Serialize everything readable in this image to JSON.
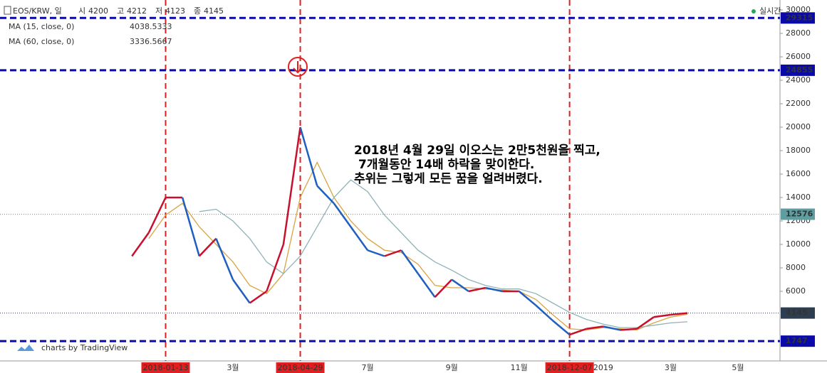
{
  "chart_data": {
    "type": "line",
    "symbol": "EOS/KRW, 일",
    "ohlc": [
      {
        "label": "시",
        "value": 4200
      },
      {
        "label": "고",
        "value": 4212
      },
      {
        "label": "저",
        "value": 4123
      },
      {
        "label": "종",
        "value": 4145
      }
    ],
    "status": "실시간",
    "watermark": "charts by TradingView",
    "annotations": [
      "2018년 4월 29일 이오스는 2만5천원을 찍고,",
      "7개월동안 14배 하락을 맞이한다.",
      "추위는 그렇게 모든 꿈을 얼려버렸다."
    ],
    "categories": [
      null,
      null,
      null,
      null,
      null,
      null,
      null,
      null,
      null,
      "2018-01-13",
      null,
      null,
      null,
      "3월",
      null,
      null,
      null,
      "2018-04-29",
      null,
      null,
      null,
      "7월",
      null,
      null,
      null,
      null,
      "9월",
      null,
      null,
      null,
      "11월",
      null,
      null,
      "2018-12-07",
      null,
      "2019",
      null,
      null,
      null,
      "3월",
      null,
      null,
      null,
      "5월",
      null,
      null
    ],
    "marked_categories": [
      "2018-01-13",
      "2018-04-29",
      "2018-12-07"
    ],
    "series": [
      {
        "name": "EOS/KRW",
        "up_color": "#c8102e",
        "down_color": "#1f5fbf",
        "values": [
          null,
          null,
          null,
          null,
          null,
          null,
          null,
          9000,
          11000,
          14000,
          14000,
          9000,
          10500,
          7000,
          5000,
          6000,
          10000,
          20000,
          15000,
          13500,
          11500,
          9500,
          9000,
          9500,
          7500,
          5500,
          7000,
          6000,
          6300,
          6000,
          6000,
          4800,
          3500,
          2300,
          2800,
          3000,
          2700,
          2800,
          3800,
          4000,
          4145,
          null,
          null,
          null,
          null,
          null
        ]
      },
      {
        "name": "MA (15, close, 0)",
        "color": "#d9a441",
        "last_value": 4038.5333,
        "values": [
          null,
          null,
          null,
          null,
          null,
          null,
          null,
          null,
          10500,
          12500,
          13500,
          11500,
          10000,
          8500,
          6500,
          5800,
          7500,
          14000,
          17000,
          14000,
          12000,
          10500,
          9500,
          9300,
          8300,
          6500,
          6300,
          6300,
          6200,
          6100,
          6000,
          5300,
          4000,
          2800,
          2700,
          2900,
          2800,
          2700,
          3300,
          3800,
          4040,
          null,
          null,
          null,
          null,
          null
        ]
      },
      {
        "name": "MA (60, close, 0)",
        "color": "#8fb3b8",
        "last_value": 3336.5667,
        "values": [
          null,
          null,
          null,
          null,
          null,
          null,
          null,
          null,
          null,
          null,
          null,
          12800,
          13000,
          12000,
          10500,
          8500,
          7500,
          9000,
          11500,
          14000,
          15500,
          14500,
          12500,
          11000,
          9500,
          8500,
          7800,
          7000,
          6500,
          6200,
          6200,
          5800,
          5000,
          4200,
          3600,
          3200,
          2900,
          2900,
          3100,
          3300,
          3400,
          null,
          null,
          null,
          null,
          null
        ]
      }
    ],
    "price_lines": [
      {
        "value": 29315,
        "color": "#0a0aa8",
        "style": "dashed"
      },
      {
        "value": 24855,
        "color": "#0a0aa8",
        "style": "dashed"
      },
      {
        "value": 12576,
        "color": "#5f9ea0",
        "style": "dotted"
      },
      {
        "value": 4145,
        "color": "#2c3e50",
        "style": "dotted"
      },
      {
        "value": 1747,
        "color": "#0a0aa8",
        "style": "dashed"
      }
    ],
    "marker_color": "#e02020",
    "ylim": [
      60,
      30000
    ],
    "yticks": [
      6000,
      8000,
      10000,
      12000,
      14000,
      16000,
      18000,
      20000,
      22000,
      24000,
      26000,
      28000,
      30000
    ]
  }
}
